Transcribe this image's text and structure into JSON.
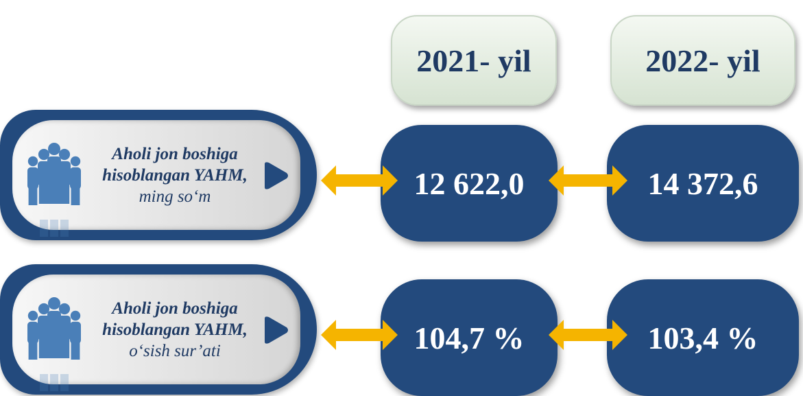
{
  "columns": [
    "2021- yil",
    "2022- yil"
  ],
  "rows": [
    {
      "label_bold": "Aholi jon boshiga hisoblangan YAHM,",
      "label_normal": "ming so‘m",
      "values": [
        "12 622,0",
        "14 372,6"
      ]
    },
    {
      "label_bold": "Aholi jon boshiga hisoblangan YAHM,",
      "label_normal": "o‘sish sur’ati",
      "values": [
        "104,7 %",
        "103,4 %"
      ]
    }
  ]
}
